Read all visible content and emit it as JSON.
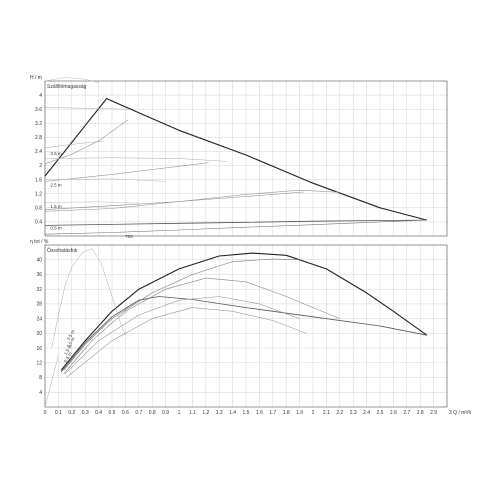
{
  "chart_data": [
    {
      "type": "line",
      "title": "Szállítómagasság",
      "ylabel": "H / m",
      "xlim": [
        0,
        3
      ],
      "ylim": [
        0,
        4.4
      ],
      "y_ticks": [
        "0.4",
        "0.8",
        "1.2",
        "1.6",
        "2",
        "2.4",
        "2.8",
        "3.2",
        "3.6",
        "4"
      ],
      "grid": true,
      "curve_labels": [
        "3.5 m",
        "2.5 m",
        "1.5 m",
        "0.5 m"
      ],
      "annotation": "700",
      "series": [
        {
          "values": [
            [
              0,
              1.7
            ],
            [
              0.46,
              3.9
            ],
            [
              0.7,
              3.5
            ],
            [
              1.0,
              3.0
            ],
            [
              1.5,
              2.3
            ],
            [
              2.0,
              1.5
            ],
            [
              2.5,
              0.8
            ],
            [
              2.85,
              0.45
            ]
          ]
        },
        {
          "values": [
            [
              0,
              0.3
            ],
            [
              0.5,
              0.33
            ],
            [
              1.0,
              0.36
            ],
            [
              1.5,
              0.39
            ],
            [
              2.0,
              0.42
            ],
            [
              2.5,
              0.44
            ],
            [
              2.85,
              0.45
            ]
          ]
        },
        {
          "values": [
            [
              0,
              0.05
            ],
            [
              0.5,
              0.1
            ],
            [
              1.0,
              0.17
            ],
            [
              1.5,
              0.25
            ],
            [
              2.0,
              0.32
            ],
            [
              2.5,
              0.4
            ],
            [
              2.85,
              0.45
            ]
          ]
        },
        {
          "values": [
            [
              0,
              0.75
            ],
            [
              0.5,
              0.86
            ],
            [
              1.0,
              0.98
            ],
            [
              1.5,
              1.12
            ],
            [
              1.93,
              1.25
            ]
          ]
        },
        {
          "values": [
            [
              0,
              1.55
            ],
            [
              0.5,
              1.75
            ],
            [
              1.0,
              1.98
            ],
            [
              1.22,
              2.08
            ]
          ]
        },
        {
          "values": [
            [
              0,
              2.05
            ],
            [
              0.2,
              2.32
            ],
            [
              0.4,
              2.7
            ],
            [
              0.62,
              3.3
            ]
          ]
        },
        {
          "values": [
            [
              0,
              3.65
            ],
            [
              0.62,
              3.6
            ]
          ]
        },
        {
          "values": [
            [
              0,
              4.4
            ],
            [
              0.15,
              4.5
            ],
            [
              0.3,
              4.45
            ],
            [
              0.4,
              4.35
            ]
          ]
        },
        {
          "values": [
            [
              0,
              2.2
            ],
            [
              0.5,
              2.22
            ],
            [
              1.0,
              2.2
            ],
            [
              1.35,
              2.12
            ]
          ]
        },
        {
          "values": [
            [
              0,
              1.6
            ],
            [
              0.5,
              1.62
            ],
            [
              0.9,
              1.55
            ]
          ]
        },
        {
          "values": [
            [
              0,
              0.7
            ],
            [
              0.5,
              0.78
            ],
            [
              1.0,
              0.98
            ],
            [
              1.5,
              1.18
            ],
            [
              1.9,
              1.3
            ],
            [
              2.2,
              1.24
            ]
          ]
        },
        {
          "values": [
            [
              0,
              0.95
            ],
            [
              0.4,
              0.97
            ],
            [
              0.7,
              0.93
            ]
          ]
        },
        {
          "values": [
            [
              0,
              2.5
            ],
            [
              0.2,
              2.6
            ],
            [
              0.44,
              2.7
            ]
          ]
        }
      ]
    },
    {
      "type": "line",
      "title": "Összhatásfok",
      "ylabel": "η tot / %",
      "xlabel": "Q / m³/h",
      "xlim": [
        0,
        3
      ],
      "ylim": [
        0,
        44
      ],
      "x_ticks": [
        "0",
        "0.1",
        "0.2",
        "0.3",
        "0.4",
        "0.5",
        "0.6",
        "0.7",
        "0.8",
        "0.9",
        "1",
        "1.1",
        "1.2",
        "1.3",
        "1.4",
        "1.5",
        "1.6",
        "1.7",
        "1.8",
        "1.9",
        "2",
        "2.1",
        "2.2",
        "2.3",
        "2.4",
        "2.5",
        "2.6",
        "2.7",
        "2.8",
        "2.9"
      ],
      "y_ticks": [
        "4",
        "8",
        "12",
        "16",
        "20",
        "24",
        "28",
        "32",
        "36",
        "40"
      ],
      "grid": true,
      "curve_labels": [
        "3.5 m",
        "2.5 m",
        "1.5 m",
        "0.5 m"
      ],
      "series": [
        {
          "values": [
            [
              0.12,
              10
            ],
            [
              0.3,
              18
            ],
            [
              0.5,
              26
            ],
            [
              0.7,
              32
            ],
            [
              1.0,
              37.5
            ],
            [
              1.3,
              41
            ],
            [
              1.55,
              41.8
            ],
            [
              1.8,
              41.2
            ],
            [
              2.1,
              37.5
            ],
            [
              2.4,
              31
            ],
            [
              2.6,
              26
            ],
            [
              2.85,
              19.5
            ]
          ]
        },
        {
          "values": [
            [
              0.12,
              9.5
            ],
            [
              0.3,
              17.5
            ],
            [
              0.5,
              24.5
            ],
            [
              0.7,
              29
            ],
            [
              0.85,
              30
            ],
            [
              1.1,
              29.2
            ],
            [
              1.5,
              27
            ],
            [
              2.0,
              24.5
            ],
            [
              2.5,
              22
            ],
            [
              2.85,
              19.5
            ]
          ]
        },
        {
          "values": [
            [
              0.14,
              10
            ],
            [
              0.3,
              17
            ],
            [
              0.5,
              24
            ],
            [
              0.8,
              31
            ],
            [
              1.1,
              36
            ],
            [
              1.4,
              39.5
            ],
            [
              1.7,
              40.2
            ],
            [
              1.9,
              40
            ]
          ]
        },
        {
          "values": [
            [
              0.14,
              9
            ],
            [
              0.35,
              18
            ],
            [
              0.6,
              26
            ],
            [
              0.9,
              32
            ],
            [
              1.2,
              35
            ],
            [
              1.5,
              34
            ],
            [
              1.8,
              30
            ],
            [
              2.2,
              24
            ]
          ]
        },
        {
          "values": [
            [
              0.15,
              9
            ],
            [
              0.4,
              18
            ],
            [
              0.7,
              25
            ],
            [
              1.0,
              29
            ],
            [
              1.3,
              30
            ],
            [
              1.6,
              28
            ],
            [
              1.9,
              24
            ]
          ]
        },
        {
          "values": [
            [
              0.16,
              8
            ],
            [
              0.5,
              18
            ],
            [
              0.8,
              24
            ],
            [
              1.1,
              27
            ],
            [
              1.4,
              26
            ],
            [
              1.7,
              23.5
            ],
            [
              1.95,
              20
            ]
          ]
        },
        {
          "values": [
            [
              0.05,
              16
            ],
            [
              0.1,
              25
            ],
            [
              0.15,
              33
            ],
            [
              0.2,
              38
            ],
            [
              0.28,
              42
            ],
            [
              0.35,
              43
            ],
            [
              0.42,
              39
            ],
            [
              0.5,
              30
            ],
            [
              0.57,
              22
            ],
            [
              0.6,
              19.5
            ]
          ]
        },
        {
          "values": [
            [
              0.2,
              12
            ],
            [
              0.35,
              18
            ],
            [
              0.5,
              23
            ],
            [
              0.62,
              26
            ]
          ]
        },
        {
          "values": [
            [
              0,
              0
            ],
            [
              0.05,
              7
            ],
            [
              0.1,
              14
            ]
          ]
        }
      ]
    }
  ]
}
